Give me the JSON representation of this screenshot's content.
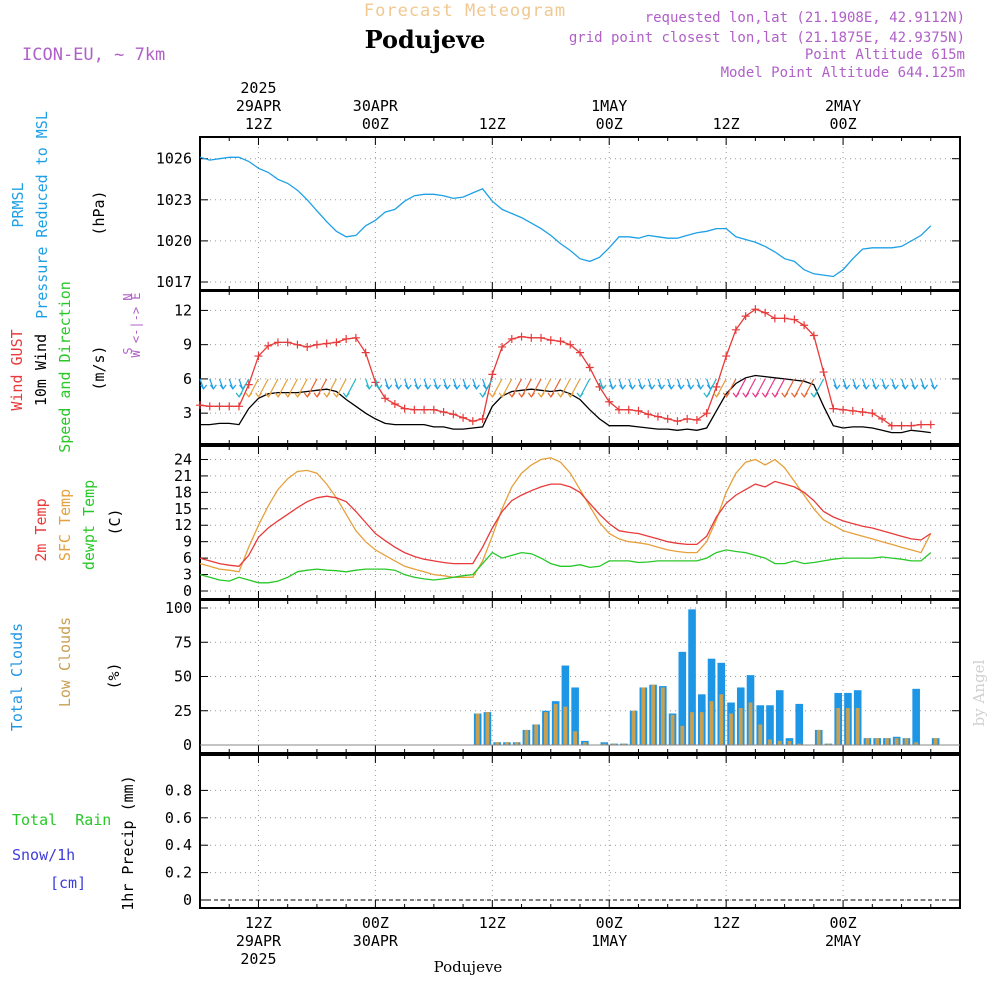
{
  "header": {
    "super_title": "Forecast Meteogram",
    "place": "Podujeve",
    "model": "ICON-EU, ~ 7km",
    "requested": "requested lon,lat (21.1908E, 42.9112N)",
    "grid_point": "grid point closest lon,lat (21.1875E, 42.9375N)",
    "point_alt": "Point Altitude 615m",
    "model_alt": "Model Point Altitude 644.125m",
    "footer_place": "Podujeve",
    "credit": "by Angel"
  },
  "time_axis": {
    "top_labels": [
      [
        "2025",
        "29APR",
        "12Z"
      ],
      [
        "",
        "30APR",
        "00Z"
      ],
      [
        "",
        "",
        "12Z"
      ],
      [
        "",
        "1MAY",
        "00Z"
      ],
      [
        "",
        "",
        "12Z"
      ],
      [
        "",
        "2MAY",
        "00Z"
      ]
    ],
    "bottom_labels": [
      [
        "12Z",
        "29APR",
        "2025"
      ],
      [
        "00Z",
        "30APR",
        ""
      ],
      [
        "12Z",
        "",
        ""
      ],
      [
        "00Z",
        "1MAY",
        ""
      ],
      [
        "12Z",
        "",
        ""
      ],
      [
        "00Z",
        "2MAY",
        ""
      ]
    ]
  },
  "panel_labels": {
    "pressure": [
      "PRMSL",
      "Pressure Reduced to MSL",
      "(hPa)"
    ],
    "wind": [
      "Wind GUST",
      "10m Wind",
      "Speed and Direction",
      "(m/s)"
    ],
    "compass": [
      "N",
      "W <-|-> E",
      "S"
    ],
    "temp": [
      "2m Temp",
      "SFC Temp",
      "dewpt Temp",
      "(C)"
    ],
    "clouds": [
      "Total Clouds",
      "Low Clouds",
      "(%)"
    ],
    "precip": [
      "Total  Rain",
      "Snow/1h",
      "[cm]",
      "1hr Precip (mm)"
    ]
  },
  "colors": {
    "pressure": "#1ea0e6",
    "gust": "#e83a3a",
    "wind": "#000000",
    "sfc_temp": "#e6a03c",
    "temp2m": "#e83a3a",
    "dewpt": "#28c828",
    "total_clouds": "#1e96e6",
    "low_clouds": "#c8a050",
    "rain": "#28c828",
    "snow": "#3c3cdc",
    "label_purple": "#b060c8"
  },
  "chart_data": [
    {
      "type": "line",
      "title": "PRMSL Pressure Reduced to MSL",
      "ylabel": "(hPa)",
      "ylim": [
        1017,
        1027
      ],
      "yticks": [
        1017,
        1020,
        1023,
        1026
      ],
      "x_hours": [
        0,
        1,
        2,
        3,
        4,
        5,
        6,
        7,
        8,
        9,
        10,
        11,
        12,
        13,
        14,
        15,
        16,
        17,
        18,
        19,
        20,
        21,
        22,
        23,
        24,
        25,
        26,
        27,
        28,
        29,
        30,
        31,
        32,
        33,
        34,
        35,
        36,
        37,
        38,
        39,
        40,
        41,
        42,
        43,
        44,
        45,
        46,
        47,
        48,
        49,
        50,
        51,
        52,
        53,
        54,
        55,
        56,
        57,
        58,
        59,
        60,
        61,
        62,
        63,
        64,
        65,
        66,
        67,
        68,
        69,
        70,
        71,
        72,
        73,
        74,
        75
      ],
      "series": [
        {
          "name": "PRMSL",
          "values": [
            1026.1,
            1025.9,
            1026.0,
            1026.1,
            1026.1,
            1025.8,
            1025.3,
            1025.0,
            1024.5,
            1024.2,
            1023.7,
            1023.0,
            1022.2,
            1021.4,
            1020.7,
            1020.3,
            1020.4,
            1021.1,
            1021.5,
            1022.1,
            1022.3,
            1022.9,
            1023.3,
            1023.4,
            1023.4,
            1023.3,
            1023.1,
            1023.2,
            1023.5,
            1023.8,
            1022.9,
            1022.3,
            1022.0,
            1021.7,
            1021.3,
            1020.9,
            1020.4,
            1019.8,
            1019.3,
            1018.7,
            1018.5,
            1018.8,
            1019.5,
            1020.3,
            1020.3,
            1020.2,
            1020.4,
            1020.3,
            1020.2,
            1020.2,
            1020.4,
            1020.6,
            1020.7,
            1020.9,
            1020.9,
            1020.3,
            1020.1,
            1019.9,
            1019.6,
            1019.2,
            1018.7,
            1018.5,
            1017.9,
            1017.6,
            1017.5,
            1017.4,
            1017.9,
            1018.7,
            1019.4,
            1019.5,
            1019.5,
            1019.5,
            1019.6,
            1020.0,
            1020.4,
            1021.1
          ]
        }
      ]
    },
    {
      "type": "line",
      "title": "Wind GUST / 10m Wind Speed and Direction",
      "ylabel": "(m/s)",
      "ylim": [
        1,
        13
      ],
      "yticks": [
        3,
        6,
        9,
        12
      ],
      "x_hours": [
        0,
        1,
        2,
        3,
        4,
        5,
        6,
        7,
        8,
        9,
        10,
        11,
        12,
        13,
        14,
        15,
        16,
        17,
        18,
        19,
        20,
        21,
        22,
        23,
        24,
        25,
        26,
        27,
        28,
        29,
        30,
        31,
        32,
        33,
        34,
        35,
        36,
        37,
        38,
        39,
        40,
        41,
        42,
        43,
        44,
        45,
        46,
        47,
        48,
        49,
        50,
        51,
        52,
        53,
        54,
        55,
        56,
        57,
        58,
        59,
        60,
        61,
        62,
        63,
        64,
        65,
        66,
        67,
        68,
        69,
        70,
        71,
        72,
        73,
        74,
        75
      ],
      "series": [
        {
          "name": "Wind GUST",
          "values": [
            3.7,
            3.6,
            3.6,
            3.6,
            3.6,
            5.5,
            8.0,
            8.9,
            9.2,
            9.2,
            9.0,
            8.8,
            9.0,
            9.1,
            9.2,
            9.5,
            9.6,
            8.3,
            5.7,
            4.3,
            3.8,
            3.4,
            3.3,
            3.3,
            3.3,
            3.1,
            2.9,
            2.6,
            2.3,
            2.5,
            6.4,
            8.8,
            9.5,
            9.7,
            9.6,
            9.6,
            9.4,
            9.3,
            9.0,
            8.3,
            7.0,
            5.3,
            4.0,
            3.3,
            3.3,
            3.2,
            2.9,
            2.7,
            2.5,
            2.3,
            2.5,
            2.4,
            3.0,
            5.3,
            8.0,
            10.3,
            11.5,
            12.1,
            11.8,
            11.3,
            11.3,
            11.2,
            10.7,
            9.8,
            6.6,
            3.4,
            3.3,
            3.2,
            3.1,
            3.0,
            2.5,
            1.9,
            1.9,
            1.9,
            2.0,
            2.0
          ]
        },
        {
          "name": "10m Wind",
          "values": [
            2.0,
            2.0,
            2.1,
            2.1,
            2.0,
            3.4,
            4.3,
            4.7,
            4.8,
            4.8,
            4.8,
            4.9,
            5.0,
            5.1,
            4.9,
            4.2,
            3.6,
            3.0,
            2.5,
            2.1,
            2.0,
            2.0,
            2.0,
            2.0,
            1.8,
            1.8,
            1.6,
            1.6,
            1.7,
            1.8,
            3.6,
            4.5,
            4.9,
            5.0,
            5.1,
            5.0,
            4.9,
            5.0,
            4.7,
            4.2,
            3.3,
            2.5,
            1.9,
            1.9,
            1.9,
            1.8,
            1.7,
            1.6,
            1.6,
            1.5,
            1.6,
            1.5,
            1.7,
            3.2,
            4.7,
            5.6,
            6.1,
            6.3,
            6.2,
            6.1,
            6.0,
            5.9,
            5.8,
            5.5,
            3.6,
            1.9,
            1.7,
            1.8,
            1.8,
            1.7,
            1.5,
            1.3,
            1.3,
            1.5,
            1.4,
            1.3
          ]
        }
      ]
    },
    {
      "type": "line",
      "title": "2m Temp / SFC Temp / dewpt Temp",
      "ylabel": "(C)",
      "ylim": [
        0,
        25
      ],
      "yticks": [
        0,
        3,
        6,
        9,
        12,
        15,
        18,
        21,
        24
      ],
      "x_hours": [
        0,
        1,
        2,
        3,
        4,
        5,
        6,
        7,
        8,
        9,
        10,
        11,
        12,
        13,
        14,
        15,
        16,
        17,
        18,
        19,
        20,
        21,
        22,
        23,
        24,
        25,
        26,
        27,
        28,
        29,
        30,
        31,
        32,
        33,
        34,
        35,
        36,
        37,
        38,
        39,
        40,
        41,
        42,
        43,
        44,
        45,
        46,
        47,
        48,
        49,
        50,
        51,
        52,
        53,
        54,
        55,
        56,
        57,
        58,
        59,
        60,
        61,
        62,
        63,
        64,
        65,
        66,
        67,
        68,
        69,
        70,
        71,
        72,
        73,
        74,
        75
      ],
      "series": [
        {
          "name": "SFC Temp",
          "values": [
            5.0,
            4.5,
            4.0,
            3.8,
            3.5,
            8.0,
            12.0,
            15.5,
            18.5,
            20.5,
            21.8,
            22.0,
            21.5,
            19.5,
            17.0,
            14.0,
            11.0,
            9.0,
            7.5,
            6.5,
            5.5,
            4.5,
            4.0,
            3.5,
            3.0,
            2.8,
            2.5,
            2.5,
            2.5,
            5.5,
            10.0,
            15.0,
            19.0,
            21.5,
            23.0,
            24.0,
            24.3,
            23.5,
            21.5,
            18.5,
            15.5,
            12.5,
            10.5,
            9.5,
            9.0,
            8.8,
            8.5,
            8.0,
            7.5,
            7.2,
            7.0,
            7.0,
            9.0,
            13.0,
            18.0,
            21.5,
            23.5,
            24.0,
            23.0,
            24.0,
            22.5,
            20.0,
            17.5,
            15.0,
            13.0,
            12.0,
            11.0,
            10.5,
            10.0,
            9.5,
            9.0,
            8.5,
            8.0,
            7.5,
            7.0,
            10.5
          ]
        },
        {
          "name": "2m Temp",
          "values": [
            6.0,
            5.5,
            5.0,
            4.7,
            4.5,
            6.5,
            9.8,
            11.5,
            12.8,
            14.0,
            15.2,
            16.3,
            17.0,
            17.3,
            17.0,
            16.3,
            14.5,
            12.5,
            10.5,
            9.2,
            8.0,
            7.0,
            6.3,
            5.8,
            5.5,
            5.2,
            5.0,
            5.0,
            5.0,
            8.0,
            11.5,
            14.5,
            16.5,
            17.5,
            18.3,
            19.0,
            19.5,
            19.5,
            19.0,
            18.0,
            16.0,
            14.0,
            12.3,
            11.0,
            10.7,
            10.5,
            10.0,
            9.5,
            9.0,
            8.7,
            8.5,
            8.5,
            10.0,
            13.5,
            16.0,
            17.5,
            18.5,
            19.5,
            19.0,
            20.0,
            19.5,
            19.0,
            18.0,
            16.5,
            14.5,
            13.5,
            12.8,
            12.3,
            11.8,
            11.5,
            11.0,
            10.5,
            10.0,
            9.5,
            9.3,
            10.5
          ]
        },
        {
          "name": "dewpt Temp",
          "values": [
            3.0,
            2.5,
            2.0,
            1.8,
            2.5,
            2.0,
            1.5,
            1.5,
            1.8,
            2.5,
            3.5,
            3.8,
            4.0,
            3.8,
            3.7,
            3.5,
            3.8,
            4.0,
            4.0,
            4.0,
            3.8,
            3.0,
            2.5,
            2.2,
            2.0,
            2.2,
            2.5,
            2.8,
            3.0,
            5.0,
            7.0,
            6.0,
            6.5,
            7.0,
            6.8,
            6.0,
            5.0,
            4.5,
            4.5,
            4.8,
            4.3,
            4.5,
            5.5,
            5.5,
            5.5,
            5.2,
            5.3,
            5.5,
            5.5,
            5.5,
            5.5,
            5.5,
            6.0,
            7.0,
            7.5,
            7.2,
            7.0,
            6.5,
            6.0,
            5.0,
            5.0,
            5.5,
            5.0,
            5.2,
            5.5,
            5.8,
            6.0,
            6.0,
            6.0,
            6.0,
            6.2,
            6.0,
            5.8,
            5.5,
            5.5,
            7.0
          ]
        }
      ]
    },
    {
      "type": "bar",
      "title": "Total Clouds / Low Clouds",
      "ylabel": "(%)",
      "ylim": [
        0,
        100
      ],
      "yticks": [
        0,
        25,
        50,
        75,
        100
      ],
      "x_hours": [
        0,
        1,
        2,
        3,
        4,
        5,
        6,
        7,
        8,
        9,
        10,
        11,
        12,
        13,
        14,
        15,
        16,
        17,
        18,
        19,
        20,
        21,
        22,
        23,
        24,
        25,
        26,
        27,
        28,
        29,
        30,
        31,
        32,
        33,
        34,
        35,
        36,
        37,
        38,
        39,
        40,
        41,
        42,
        43,
        44,
        45,
        46,
        47,
        48,
        49,
        50,
        51,
        52,
        53,
        54,
        55,
        56,
        57,
        58,
        59,
        60,
        61,
        62,
        63,
        64,
        65,
        66,
        67,
        68,
        69,
        70,
        71,
        72,
        73,
        74,
        75
      ],
      "series": [
        {
          "name": "Total Clouds",
          "values": [
            0,
            0,
            0,
            0,
            0,
            0,
            0,
            0,
            0,
            0,
            0,
            0,
            0,
            0,
            0,
            0,
            0,
            0,
            0,
            0,
            0,
            0,
            0,
            0,
            0,
            0,
            0,
            0,
            23,
            24,
            2,
            2,
            2,
            11,
            15,
            25,
            32,
            58,
            42,
            3,
            0,
            2,
            1,
            1,
            25,
            42,
            44,
            43,
            23,
            68,
            99,
            37,
            63,
            60,
            31,
            42,
            51,
            29,
            29,
            40,
            5,
            30,
            0,
            11,
            1,
            38,
            38,
            40,
            5,
            5,
            5,
            6,
            5,
            41,
            0,
            5
          ]
        },
        {
          "name": "Low Clouds",
          "values": [
            0,
            0,
            0,
            0,
            0,
            0,
            0,
            0,
            0,
            0,
            0,
            0,
            0,
            0,
            0,
            0,
            0,
            0,
            0,
            0,
            0,
            0,
            0,
            0,
            0,
            0,
            0,
            0,
            23,
            24,
            2,
            2,
            2,
            11,
            15,
            24,
            30,
            28,
            10,
            2,
            0,
            1,
            1,
            1,
            25,
            42,
            44,
            42,
            22,
            14,
            24,
            24,
            32,
            37,
            23,
            27,
            31,
            15,
            4,
            3,
            3,
            1,
            0,
            11,
            1,
            27,
            27,
            27,
            5,
            5,
            5,
            5,
            5,
            2,
            0,
            5
          ]
        }
      ]
    },
    {
      "type": "bar",
      "title": "Total Rain / Snow/1h",
      "ylabel": "1hr Precip (mm)",
      "ylim": [
        0,
        1
      ],
      "yticks": [
        0,
        0.2,
        0.4,
        0.6,
        0.8
      ],
      "series": [
        {
          "name": "Total Rain",
          "values": []
        },
        {
          "name": "Snow/1h",
          "values": []
        }
      ]
    }
  ]
}
